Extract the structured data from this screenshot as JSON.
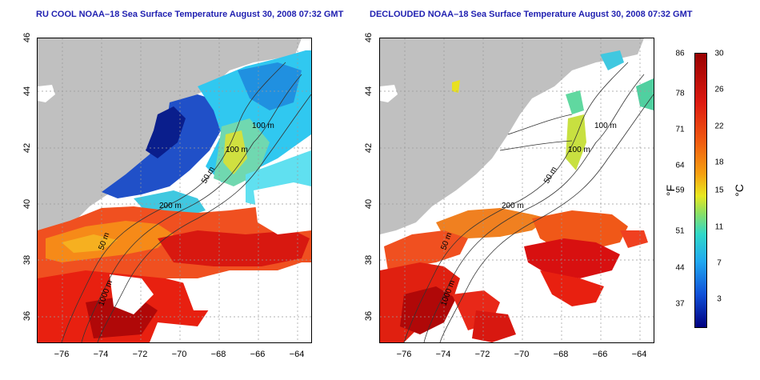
{
  "left_panel": {
    "title": "RU COOL NOAA–18 Sea Surface Temperature August 30, 2008 07:32 GMT",
    "contour_labels": [
      "100 m",
      "100 m",
      "50 m",
      "200 m",
      "50 m",
      "1000 m"
    ]
  },
  "right_panel": {
    "title": "DECLOUDED NOAA–18 Sea Surface Temperature August 30, 2008 07:32 GMT",
    "contour_labels": [
      "100 m",
      "100 m",
      "50 m",
      "200 m",
      "50 m",
      "1000 m"
    ]
  },
  "axes": {
    "x_ticks": [
      "−76",
      "−74",
      "−72",
      "−70",
      "−68",
      "−66",
      "−64"
    ],
    "y_ticks": [
      "46",
      "44",
      "42",
      "40",
      "38",
      "36"
    ],
    "x_range": [
      -77,
      -63
    ],
    "y_range": [
      35,
      46
    ]
  },
  "colorbar": {
    "fahrenheit_label": "°F",
    "celsius_label": "°C",
    "fahrenheit_ticks": [
      "86",
      "78",
      "71",
      "64",
      "59",
      "51",
      "44",
      "37"
    ],
    "celsius_ticks": [
      "30",
      "26",
      "22",
      "18",
      "15",
      "11",
      "7",
      "3"
    ]
  },
  "colors": {
    "land": "#c0c0c0",
    "cloud": "#ffffff",
    "title": "#1f1fb0",
    "warm": "#e02010",
    "cool": "#20a0f0"
  }
}
